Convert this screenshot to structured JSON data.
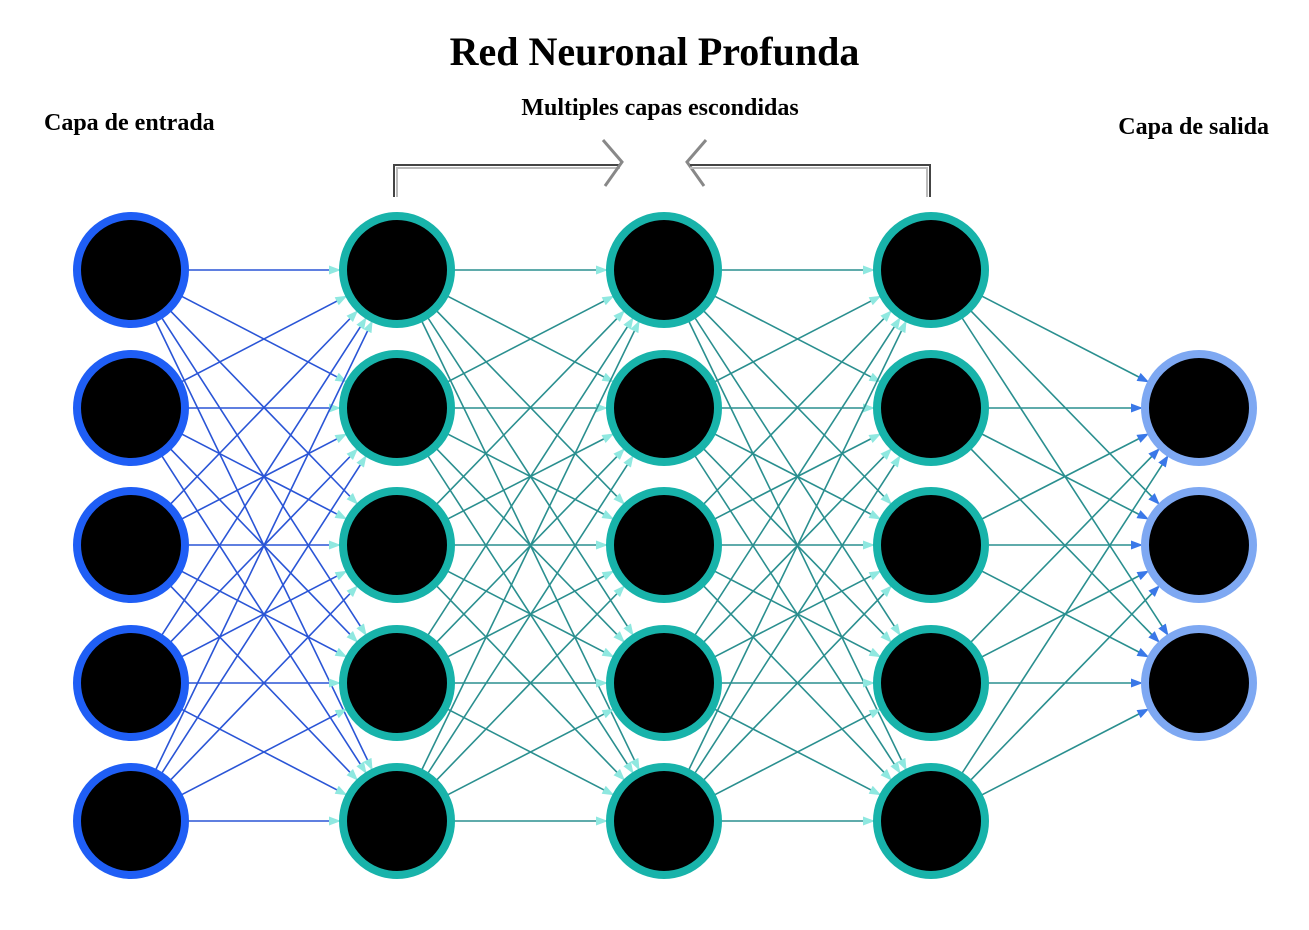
{
  "title": "Red Neuronal Profunda",
  "labels": {
    "input": "Capa de entrada",
    "hidden": "Multiples capas escondidas",
    "output": "Capa de salida"
  },
  "network": {
    "layers": [
      {
        "name": "input",
        "neurons": 5,
        "ring_color": "#1f5ef5"
      },
      {
        "name": "hidden-1",
        "neurons": 5,
        "ring_color": "#18b3aa"
      },
      {
        "name": "hidden-2",
        "neurons": 5,
        "ring_color": "#18b3aa"
      },
      {
        "name": "hidden-3",
        "neurons": 5,
        "ring_color": "#18b3aa"
      },
      {
        "name": "output",
        "neurons": 3,
        "ring_color": "#7ea8f2"
      }
    ],
    "edge_colors": {
      "from_input": "#2a55d6",
      "from_hidden": "#2a8f8f",
      "arrow_input": "#1f5ef5",
      "arrow_hidden": "#8fe8e0",
      "arrow_output": "#3a78e8"
    },
    "neuron_fill": "#000000"
  }
}
